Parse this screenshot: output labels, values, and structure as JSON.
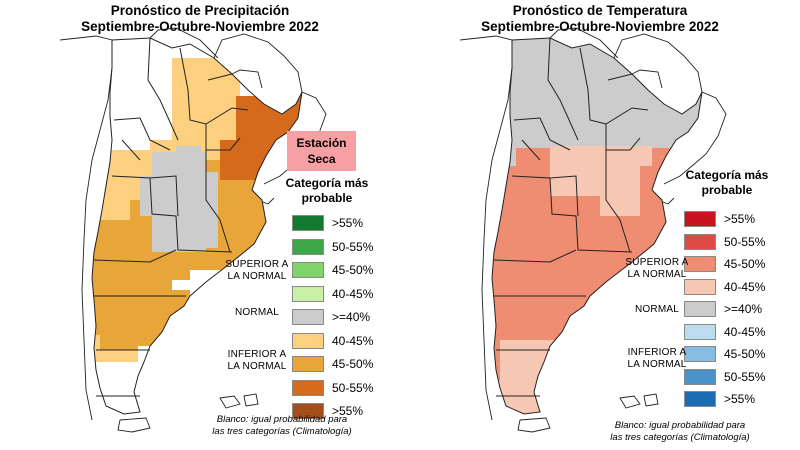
{
  "left": {
    "title_line1": "Pronóstico de Precipitación",
    "title_line2": "Septiembre-Octubre-Noviembre 2022",
    "dry_season_line1": "Estación",
    "dry_season_line2": "Seca",
    "legend_title_line1": "Categoría más",
    "legend_title_line2": "probable",
    "legend_items": [
      {
        "label": ">55%",
        "color": "#117a2e"
      },
      {
        "label": "50-55%",
        "color": "#3ea748"
      },
      {
        "label": "45-50%",
        "color": "#7fd46a"
      },
      {
        "label": "40-45%",
        "color": "#c8f0a6"
      },
      {
        "label": ">=40%",
        "color": "#cccccc"
      },
      {
        "label": "40-45%",
        "color": "#fdd07f"
      },
      {
        "label": "45-50%",
        "color": "#e8a53a"
      },
      {
        "label": "50-55%",
        "color": "#d56a1c"
      },
      {
        "label": ">55%",
        "color": "#a24d1a"
      }
    ],
    "upper_line1": "SUPERIOR A",
    "upper_line2": "LA NORMAL",
    "normal": "NORMAL",
    "lower_line1": "INFERIOR A",
    "lower_line2": "LA NORMAL",
    "note_line1": "Blanco: igual probabilidad para",
    "note_line2": "las tres categorías (Climatología)"
  },
  "right": {
    "title_line1": "Pronóstico de Temperatura",
    "title_line2": "Septiembre-Octubre-Noviembre 2022",
    "legend_title_line1": "Categoría más",
    "legend_title_line2": "probable",
    "legend_items": [
      {
        "label": ">55%",
        "color": "#c8141e"
      },
      {
        "label": "50-55%",
        "color": "#e04a44"
      },
      {
        "label": "45-50%",
        "color": "#ee8d72"
      },
      {
        "label": "40-45%",
        "color": "#f6c7b2"
      },
      {
        "label": ">=40%",
        "color": "#cccccc"
      },
      {
        "label": "40-45%",
        "color": "#bcdbee"
      },
      {
        "label": "45-50%",
        "color": "#86bcdf"
      },
      {
        "label": "50-55%",
        "color": "#4a92c8"
      },
      {
        "label": ">55%",
        "color": "#1a6db2"
      }
    ],
    "upper_line1": "SUPERIOR A",
    "upper_line2": "LA NORMAL",
    "normal": "NORMAL",
    "lower_line1": "INFERIOR A",
    "lower_line2": "LA NORMAL",
    "note_line1": "Blanco: igual probabilidad para",
    "note_line2": "las tres categorías (Climatología)"
  }
}
